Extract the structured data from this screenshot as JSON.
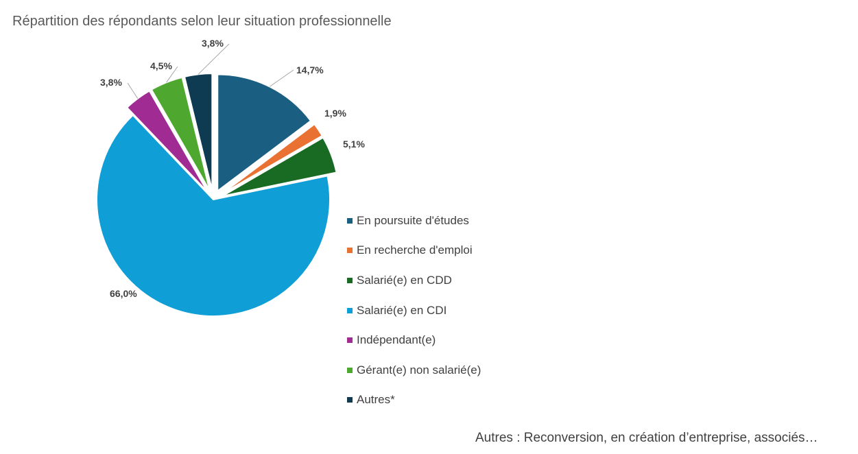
{
  "chart_data": {
    "type": "pie",
    "title": "Répartition des répondants selon leur situation professionnelle",
    "categories": [
      "En poursuite d'études",
      "En recherche d'emploi",
      "Salarié(e) en CDD",
      "Salarié(e) en CDI",
      "Indépendant(e)",
      "Gérant(e) non salarié(e)",
      "Autres*"
    ],
    "values": [
      14.7,
      1.9,
      5.1,
      66.0,
      3.8,
      4.5,
      3.8
    ],
    "data_labels": [
      "14,7%",
      "1,9%",
      "5,1%",
      "66,0%",
      "3,8%",
      "4,5%",
      "3,8%"
    ],
    "colors": [
      "#1A5E82",
      "#E97132",
      "#196B24",
      "#0F9ED5",
      "#A02B93",
      "#4EA72E",
      "#0E3A52"
    ],
    "exploded": true,
    "legend_position": "right",
    "footnote": "Autres : Reconversion, en création d’entreprise, associés…"
  }
}
